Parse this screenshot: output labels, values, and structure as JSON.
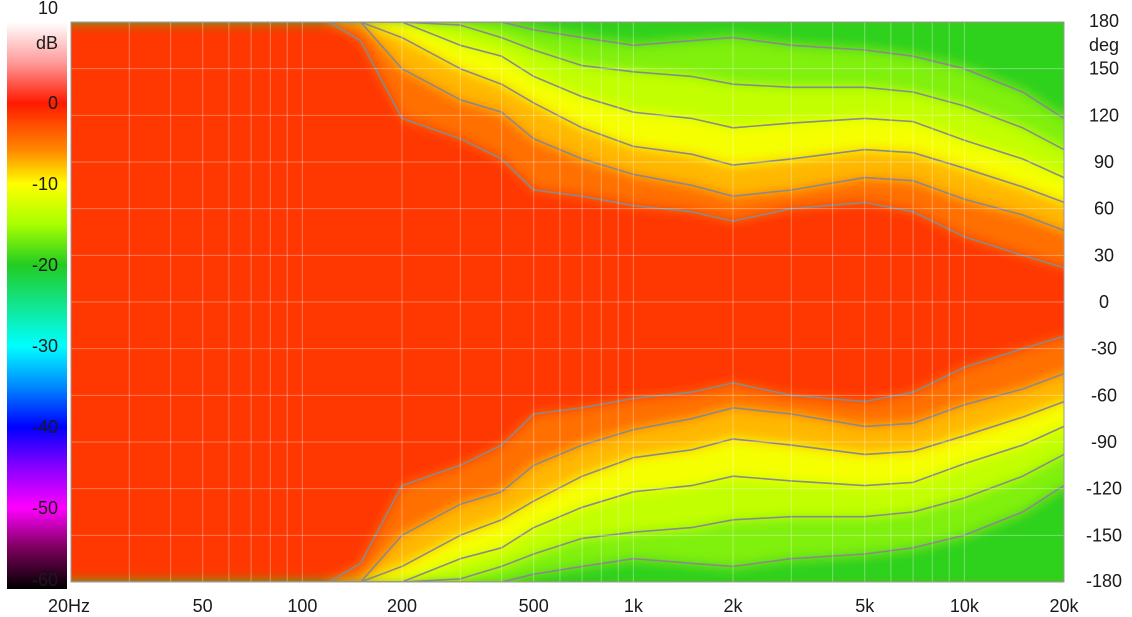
{
  "chart_data": {
    "type": "heatmap",
    "title": "",
    "xlabel": "",
    "ylabel": "",
    "x_scale": "log",
    "xlim": [
      20,
      20000
    ],
    "ylim": [
      -180,
      180
    ],
    "x_ticks": [
      {
        "value": 20,
        "label": "20Hz"
      },
      {
        "value": 50,
        "label": "50"
      },
      {
        "value": 100,
        "label": "100"
      },
      {
        "value": 200,
        "label": "200"
      },
      {
        "value": 500,
        "label": "500"
      },
      {
        "value": 1000,
        "label": "1k"
      },
      {
        "value": 2000,
        "label": "2k"
      },
      {
        "value": 5000,
        "label": "5k"
      },
      {
        "value": 10000,
        "label": "10k"
      },
      {
        "value": 20000,
        "label": "20k"
      }
    ],
    "y_ticks": [
      {
        "value": 180,
        "label": "180"
      },
      {
        "value": 150,
        "label": "150"
      },
      {
        "value": 120,
        "label": "120"
      },
      {
        "value": 90,
        "label": "90"
      },
      {
        "value": 60,
        "label": "60"
      },
      {
        "value": 30,
        "label": "30"
      },
      {
        "value": 0,
        "label": "0"
      },
      {
        "value": -30,
        "label": "-30"
      },
      {
        "value": -60,
        "label": "-60"
      },
      {
        "value": -90,
        "label": "-90"
      },
      {
        "value": -120,
        "label": "-120"
      },
      {
        "value": -150,
        "label": "-150"
      },
      {
        "value": -180,
        "label": "-180"
      }
    ],
    "y_unit": "deg",
    "color_scale": {
      "unit": "dB",
      "range": [
        -60,
        10
      ],
      "ticks": [
        {
          "value": 10,
          "label": "10"
        },
        {
          "value": 0,
          "label": "0"
        },
        {
          "value": -10,
          "label": "-10"
        },
        {
          "value": -20,
          "label": "-20"
        },
        {
          "value": -30,
          "label": "-30"
        },
        {
          "value": -40,
          "label": "-40"
        },
        {
          "value": -50,
          "label": "-50"
        },
        {
          "value": -60,
          "label": "-60"
        }
      ],
      "stops": [
        {
          "db": 10,
          "color": "#ffffff"
        },
        {
          "db": 5,
          "color": "#ff9a9a"
        },
        {
          "db": 0,
          "color": "#ff1a00"
        },
        {
          "db": -6,
          "color": "#ff8c00"
        },
        {
          "db": -10,
          "color": "#ffff00"
        },
        {
          "db": -15,
          "color": "#a8ff00"
        },
        {
          "db": -20,
          "color": "#22cc22"
        },
        {
          "db": -30,
          "color": "#00ffff"
        },
        {
          "db": -35,
          "color": "#0088ff"
        },
        {
          "db": -40,
          "color": "#0000ff"
        },
        {
          "db": -45,
          "color": "#8800ff"
        },
        {
          "db": -50,
          "color": "#ff00ff"
        },
        {
          "db": -55,
          "color": "#7a005a"
        },
        {
          "db": -60,
          "color": "#000000"
        }
      ]
    },
    "contour_step_db": 3,
    "grid": true,
    "beamwidth_contours_deg": [
      {
        "freq": 20,
        "angles": [
          180,
          180,
          180,
          180,
          180,
          180
        ]
      },
      {
        "freq": 120,
        "angles": [
          180,
          180,
          180,
          180,
          180,
          180
        ]
      },
      {
        "freq": 150,
        "angles": [
          168,
          180,
          180,
          180,
          180,
          180
        ]
      },
      {
        "freq": 200,
        "angles": [
          118,
          150,
          170,
          180,
          180,
          180
        ]
      },
      {
        "freq": 300,
        "angles": [
          105,
          130,
          150,
          165,
          178,
          180
        ]
      },
      {
        "freq": 400,
        "angles": [
          92,
          122,
          140,
          158,
          170,
          180
        ]
      },
      {
        "freq": 500,
        "angles": [
          72,
          105,
          128,
          145,
          162,
          175
        ]
      },
      {
        "freq": 700,
        "angles": [
          68,
          92,
          112,
          132,
          152,
          170
        ]
      },
      {
        "freq": 1000,
        "angles": [
          62,
          82,
          100,
          122,
          148,
          165
        ]
      },
      {
        "freq": 1500,
        "angles": [
          58,
          75,
          95,
          118,
          145,
          168
        ]
      },
      {
        "freq": 2000,
        "angles": [
          52,
          68,
          88,
          112,
          140,
          170
        ]
      },
      {
        "freq": 3000,
        "angles": [
          60,
          72,
          92,
          115,
          138,
          165
        ]
      },
      {
        "freq": 5000,
        "angles": [
          64,
          80,
          98,
          118,
          138,
          162
        ]
      },
      {
        "freq": 7000,
        "angles": [
          58,
          78,
          96,
          116,
          135,
          158
        ]
      },
      {
        "freq": 10000,
        "angles": [
          42,
          66,
          86,
          104,
          126,
          150
        ]
      },
      {
        "freq": 15000,
        "angles": [
          30,
          56,
          74,
          92,
          112,
          135
        ]
      },
      {
        "freq": 20000,
        "angles": [
          22,
          46,
          64,
          80,
          98,
          118
        ]
      }
    ]
  }
}
